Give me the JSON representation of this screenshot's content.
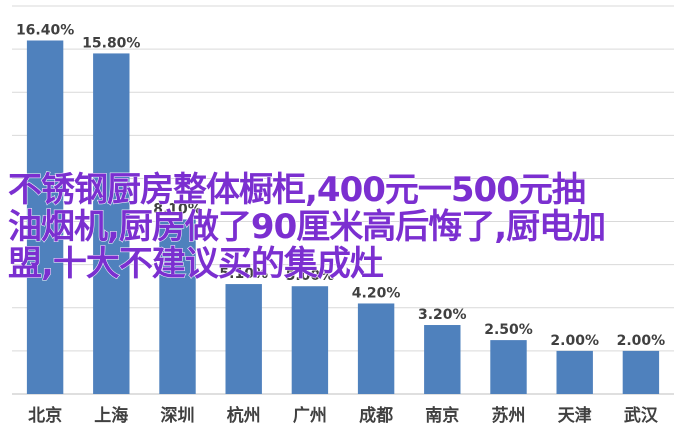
{
  "chart_data": {
    "type": "bar",
    "categories": [
      "北京",
      "上海",
      "深圳",
      "杭州",
      "广州",
      "成都",
      "南京",
      "苏州",
      "天津",
      "武汉"
    ],
    "values": [
      16.4,
      15.8,
      8.1,
      5.1,
      5.0,
      4.2,
      3.2,
      2.5,
      2.0,
      2.0
    ],
    "value_labels": [
      "16.40%",
      "15.80%",
      "8.10%",
      "5.10%",
      "5.00%",
      "4.20%",
      "3.20%",
      "2.50%",
      "2.00%",
      "2.00%"
    ],
    "ylim": [
      0,
      18
    ],
    "ytick_step": 2,
    "grid": true,
    "bar_color": "#4f81bd"
  },
  "overlay": {
    "lines": [
      "不锈钢厨房整体橱柜,400元一500元抽",
      "油烟机,厨房做了90厘米高后悔了,厨电加",
      "盟,十大不建议买的集成灶"
    ],
    "color": "#7b2fd0"
  }
}
